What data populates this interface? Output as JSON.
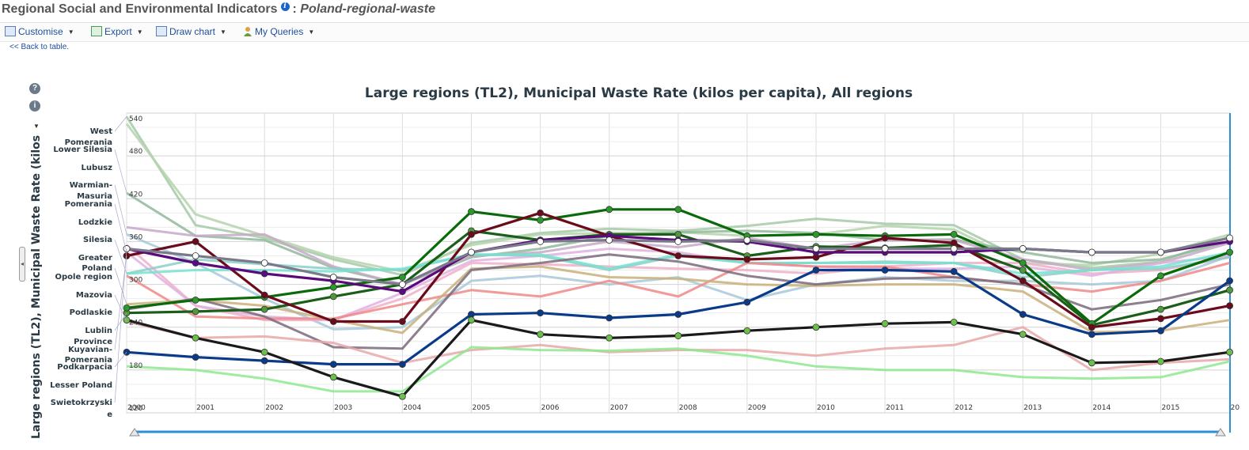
{
  "page": {
    "title": "Regional Social and Environmental Indicators",
    "separator": ":",
    "subtitle": "Poland-regional-waste"
  },
  "toolbar": {
    "customise": "Customise",
    "export": "Export",
    "draw_chart": "Draw chart",
    "my_queries": "My Queries"
  },
  "back_link": "<< Back to table.",
  "icons": {
    "info": "info-icon",
    "help": "help-icon",
    "customise": "table-icon",
    "export": "export-icon",
    "draw_chart": "chart-icon",
    "my_queries": "user-icon"
  },
  "chart_data": {
    "type": "line",
    "title": "Large regions (TL2), Municipal Waste Rate (kilos per capita), All regions",
    "ylabel": "Large regions (TL2), Municipal Waste Rate (kilos",
    "xlabel": "",
    "ylim": [
      120,
      540
    ],
    "yticks": [
      120,
      180,
      240,
      300,
      360,
      420,
      480,
      540
    ],
    "x": [
      "2000",
      "2001",
      "2002",
      "2003",
      "2004",
      "2005",
      "2006",
      "2007",
      "2008",
      "2009",
      "2010",
      "2011",
      "2012",
      "2013",
      "2014",
      "2015",
      "20"
    ],
    "grid": true,
    "legend": "none",
    "region_labels": [
      "West",
      "Pomerania",
      "Lower Silesia",
      "Lubusz",
      "Warmian-",
      "Masuria",
      "Pomerania",
      "Lodzkie",
      "Silesia",
      "Greater",
      "Poland",
      "Opole region",
      "Mazovia",
      "Podlaskie",
      "Lublin",
      "Province",
      "Kuyavian-",
      "Pomerania",
      "Podkarpacia",
      "Lesser Poland",
      "Swietokrzyski",
      "e"
    ],
    "series": [
      {
        "color": "#a6c9a8",
        "markers": false,
        "values": [
          535,
          383,
          365,
          335,
          313,
          358,
          372,
          378,
          375,
          382,
          392,
          385,
          383,
          335,
          323,
          332,
          367
        ]
      },
      {
        "color": "#b5d3ad",
        "markers": false,
        "values": [
          525,
          398,
          368,
          338,
          318,
          355,
          370,
          372,
          373,
          368,
          370,
          382,
          377,
          330,
          327,
          343,
          370
        ]
      },
      {
        "color": "#90b89a",
        "markers": false,
        "values": [
          428,
          368,
          362,
          323,
          300,
          338,
          350,
          368,
          373,
          375,
          372,
          362,
          363,
          345,
          330,
          335,
          360
        ]
      },
      {
        "color": "#c8a8c8",
        "markers": false,
        "values": [
          380,
          368,
          370,
          325,
          300,
          340,
          345,
          360,
          352,
          365,
          350,
          362,
          362,
          335,
          320,
          330,
          358
        ]
      },
      {
        "color": "#a8c8d8",
        "markers": false,
        "values": [
          370,
          330,
          280,
          237,
          240,
          305,
          312,
          300,
          310,
          278,
          300,
          310,
          305,
          305,
          300,
          305,
          340
        ]
      },
      {
        "color": "#f0b0c8",
        "markers": false,
        "values": [
          355,
          270,
          250,
          250,
          280,
          330,
          328,
          325,
          322,
          320,
          315,
          325,
          330,
          330,
          315,
          320,
          338
        ]
      },
      {
        "color": "#e0b0e0",
        "markers": false,
        "values": [
          345,
          270,
          255,
          250,
          288,
          333,
          340,
          350,
          345,
          330,
          325,
          322,
          322,
          325,
          312,
          330,
          340
        ]
      },
      {
        "color": "#8ad0c8",
        "markers": false,
        "values": [
          315,
          335,
          328,
          322,
          320,
          342,
          340,
          320,
          340,
          330,
          330,
          332,
          330,
          310,
          320,
          322,
          338
        ]
      },
      {
        "color": "#75e2d0",
        "markers": false,
        "values": [
          315,
          320,
          320,
          318,
          322,
          342,
          342,
          322,
          342,
          330,
          330,
          330,
          330,
          315,
          320,
          325,
          345
        ]
      },
      {
        "color": "#f08888",
        "markers": false,
        "values": [
          312,
          255,
          252,
          252,
          272,
          292,
          283,
          305,
          283,
          330,
          325,
          325,
          310,
          300,
          290,
          305,
          330
        ]
      },
      {
        "color": "#c8b07a",
        "markers": false,
        "values": [
          272,
          278,
          270,
          250,
          232,
          322,
          325,
          310,
          308,
          300,
          298,
          300,
          300,
          290,
          233,
          235,
          250
        ]
      },
      {
        "color": "#7a6a7a",
        "markers": false,
        "values": [
          265,
          280,
          255,
          212,
          210,
          320,
          330,
          342,
          332,
          312,
          300,
          308,
          310,
          300,
          265,
          278,
          300
        ]
      },
      {
        "color": "#e8a8a8",
        "markers": false,
        "values": [
          248,
          225,
          227,
          218,
          190,
          208,
          215,
          205,
          208,
          208,
          200,
          210,
          215,
          240,
          180,
          190,
          195
        ]
      },
      {
        "color": "#8ee88e",
        "markers": false,
        "values": [
          185,
          180,
          168,
          150,
          150,
          212,
          208,
          207,
          210,
          200,
          185,
          180,
          180,
          170,
          168,
          170,
          192
        ]
      },
      {
        "color": "#1a5e1a",
        "markers": true,
        "marker_fill": "#4e9a3a",
        "values": [
          260,
          262,
          265,
          283,
          300,
          375,
          362,
          370,
          370,
          340,
          353,
          351,
          355,
          320,
          243,
          265,
          292
        ]
      },
      {
        "color": "#0a6a0a",
        "markers": true,
        "marker_fill": "#2a9a2a",
        "values": [
          267,
          278,
          282,
          296,
          310,
          402,
          390,
          405,
          405,
          368,
          370,
          368,
          370,
          330,
          245,
          312,
          345
        ]
      },
      {
        "color": "#6a0a1a",
        "markers": true,
        "marker_fill": "#6a0a1a",
        "values": [
          340,
          360,
          285,
          248,
          248,
          370,
          400,
          368,
          340,
          335,
          338,
          365,
          358,
          305,
          240,
          252,
          270
        ]
      },
      {
        "color": "#5a0a7a",
        "markers": true,
        "marker_fill": "#5a0a8a",
        "values": [
          350,
          330,
          315,
          305,
          290,
          345,
          362,
          368,
          362,
          360,
          345,
          345,
          345,
          350,
          345,
          345,
          360
        ]
      },
      {
        "color": "#0a3a8a",
        "markers": true,
        "marker_fill": "#0a3a8a",
        "values": [
          205,
          198,
          193,
          188,
          188,
          258,
          260,
          253,
          258,
          275,
          320,
          320,
          318,
          258,
          230,
          235,
          305
        ]
      },
      {
        "color": "#1a1a1a",
        "markers": true,
        "marker_fill": "#6cc04a",
        "values": [
          250,
          225,
          205,
          170,
          143,
          250,
          230,
          225,
          228,
          235,
          240,
          245,
          247,
          230,
          190,
          192,
          205
        ]
      },
      {
        "color": "#7a7a8a",
        "markers": true,
        "marker_fill": "#ffffff",
        "values": [
          350,
          340,
          330,
          310,
          300,
          345,
          360,
          362,
          360,
          362,
          350,
          350,
          350,
          350,
          345,
          345,
          365
        ]
      }
    ]
  }
}
